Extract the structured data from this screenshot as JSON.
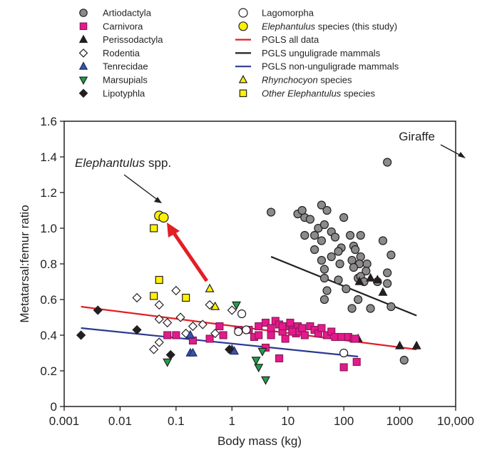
{
  "chart_data": {
    "type": "scatter",
    "xscale": "log",
    "xlim": [
      0.001,
      10000
    ],
    "ylim": [
      0,
      1.6
    ],
    "xlabel": "Body mass (kg)",
    "ylabel": "Metatarsal:femur ratio",
    "x_ticks": [
      0.001,
      0.01,
      0.1,
      1,
      10,
      100,
      1000,
      10000
    ],
    "x_tick_labels": [
      "0.001",
      "0.01",
      "0.1",
      "1",
      "10",
      "100",
      "1000",
      "10,000"
    ],
    "y_ticks": [
      0,
      0.2,
      0.4,
      0.6,
      0.8,
      1.0,
      1.2,
      1.4,
      1.6
    ],
    "y_tick_labels": [
      "0",
      "0.2",
      "0.4",
      "0.6",
      "0.8",
      "1.0",
      "1.2",
      "1.4",
      "1.6"
    ],
    "grid": false,
    "legend_placement": "top",
    "legend": [
      {
        "label": "Artiodactyla",
        "italic_prefix": "",
        "marker": "circle",
        "fill": "#8c8b8b",
        "stroke": "#231f20"
      },
      {
        "label": "Carnivora",
        "italic_prefix": "",
        "marker": "square",
        "fill": "#e6198c",
        "stroke": "#8b1a5a"
      },
      {
        "label": "Perissodactyla",
        "italic_prefix": "",
        "marker": "triangle-up",
        "fill": "#231f20",
        "stroke": "#231f20"
      },
      {
        "label": "Rodentia",
        "italic_prefix": "",
        "marker": "diamond",
        "fill": "#ffffff",
        "stroke": "#231f20"
      },
      {
        "label": "Tenrecidae",
        "italic_prefix": "",
        "marker": "triangle-up",
        "fill": "#3a54a4",
        "stroke": "#1d2a6b"
      },
      {
        "label": "Marsupials",
        "italic_prefix": "",
        "marker": "triangle-down",
        "fill": "#1fa04a",
        "stroke": "#231f20"
      },
      {
        "label": "Lipotyphla",
        "italic_prefix": "",
        "marker": "diamond",
        "fill": "#231f20",
        "stroke": "#231f20"
      },
      {
        "label": "Lagomorpha",
        "italic_prefix": "",
        "marker": "circle",
        "fill": "#ffffff",
        "stroke": "#231f20"
      },
      {
        "label": " species (this study)",
        "italic_prefix": "Elephantulus",
        "marker": "circle",
        "fill": "#fff200",
        "stroke": "#231f20"
      },
      {
        "label": "PGLS all data",
        "italic_prefix": "",
        "marker": "line",
        "fill": "#e31e24",
        "stroke": "#e31e24"
      },
      {
        "label": "PGLS unguligrade mammals",
        "italic_prefix": "",
        "marker": "line",
        "fill": "#231f20",
        "stroke": "#231f20"
      },
      {
        "label": "PGLS non-unguligrade mammals",
        "italic_prefix": "",
        "marker": "line",
        "fill": "#2b3990",
        "stroke": "#2b3990"
      },
      {
        "label": " species",
        "italic_prefix": "Rhynchocyon",
        "marker": "triangle-up",
        "fill": "#fff200",
        "stroke": "#231f20"
      },
      {
        "label": " species",
        "italic_prefix": "Other Elephantulus",
        "marker": "square",
        "fill": "#fff200",
        "stroke": "#231f20"
      }
    ],
    "series": [
      {
        "name": "Artiodactyla",
        "points": [
          [
            5,
            1.09
          ],
          [
            15,
            1.08
          ],
          [
            20,
            1.06
          ],
          [
            40,
            1.13
          ],
          [
            18,
            1.1
          ],
          [
            25,
            1.05
          ],
          [
            50,
            1.1
          ],
          [
            30,
            0.96
          ],
          [
            20,
            0.96
          ],
          [
            35,
            1.0
          ],
          [
            45,
            1.02
          ],
          [
            60,
            0.98
          ],
          [
            100,
            1.06
          ],
          [
            40,
            0.93
          ],
          [
            70,
            0.95
          ],
          [
            130,
            0.96
          ],
          [
            200,
            0.96
          ],
          [
            500,
            0.93
          ],
          [
            30,
            0.88
          ],
          [
            60,
            0.84
          ],
          [
            90,
            0.89
          ],
          [
            150,
            0.9
          ],
          [
            40,
            0.82
          ],
          [
            80,
            0.87
          ],
          [
            140,
            0.82
          ],
          [
            160,
            0.88
          ],
          [
            200,
            0.84
          ],
          [
            45,
            0.77
          ],
          [
            85,
            0.8
          ],
          [
            190,
            0.8
          ],
          [
            260,
            0.8
          ],
          [
            700,
            0.85
          ],
          [
            45,
            0.72
          ],
          [
            80,
            0.71
          ],
          [
            150,
            0.78
          ],
          [
            250,
            0.76
          ],
          [
            600,
            0.75
          ],
          [
            50,
            0.65
          ],
          [
            110,
            0.66
          ],
          [
            180,
            0.72
          ],
          [
            200,
            0.73
          ],
          [
            230,
            0.7
          ],
          [
            400,
            0.7
          ],
          [
            45,
            0.6
          ],
          [
            140,
            0.55
          ],
          [
            300,
            0.55
          ],
          [
            700,
            0.56
          ],
          [
            600,
            0.69
          ],
          [
            180,
            0.6
          ],
          [
            1200,
            0.26
          ],
          [
            600,
            1.37
          ]
        ]
      },
      {
        "name": "Perissodactyla",
        "points": [
          [
            190,
            0.7
          ],
          [
            300,
            0.72
          ],
          [
            400,
            0.71
          ],
          [
            500,
            0.64
          ],
          [
            1000,
            0.34
          ],
          [
            2000,
            0.34
          ],
          [
            180,
            0.38
          ]
        ]
      },
      {
        "name": "Carnivora",
        "points": [
          [
            0.07,
            0.4
          ],
          [
            0.1,
            0.4
          ],
          [
            0.2,
            0.37
          ],
          [
            0.4,
            0.38
          ],
          [
            0.6,
            0.45
          ],
          [
            0.7,
            0.4
          ],
          [
            1.3,
            0.43
          ],
          [
            2,
            0.43
          ],
          [
            3,
            0.45
          ],
          [
            4,
            0.47
          ],
          [
            5,
            0.44
          ],
          [
            6,
            0.48
          ],
          [
            7,
            0.46
          ],
          [
            8,
            0.42
          ],
          [
            9,
            0.38
          ],
          [
            10,
            0.45
          ],
          [
            11,
            0.47
          ],
          [
            12,
            0.43
          ],
          [
            14,
            0.41
          ],
          [
            15,
            0.45
          ],
          [
            16,
            0.42
          ],
          [
            18,
            0.44
          ],
          [
            20,
            0.4
          ],
          [
            25,
            0.45
          ],
          [
            30,
            0.43
          ],
          [
            35,
            0.41
          ],
          [
            40,
            0.44
          ],
          [
            50,
            0.4
          ],
          [
            60,
            0.42
          ],
          [
            70,
            0.39
          ],
          [
            90,
            0.39
          ],
          [
            120,
            0.39
          ],
          [
            150,
            0.38
          ],
          [
            2.5,
            0.39
          ],
          [
            4,
            0.33
          ],
          [
            7,
            0.27
          ],
          [
            5,
            0.4
          ],
          [
            12,
            0.42
          ],
          [
            100,
            0.22
          ],
          [
            170,
            0.25
          ],
          [
            160,
            0.38
          ],
          [
            8,
            0.45
          ],
          [
            3,
            0.4
          ]
        ]
      },
      {
        "name": "Rodentia",
        "points": [
          [
            0.02,
            0.61
          ],
          [
            0.05,
            0.49
          ],
          [
            0.05,
            0.57
          ],
          [
            0.1,
            0.65
          ],
          [
            0.07,
            0.47
          ],
          [
            0.12,
            0.5
          ],
          [
            0.04,
            0.32
          ],
          [
            0.05,
            0.36
          ],
          [
            0.15,
            0.41
          ],
          [
            0.2,
            0.45
          ],
          [
            0.4,
            0.57
          ],
          [
            0.5,
            0.41
          ],
          [
            1.0,
            0.54
          ],
          [
            0.3,
            0.46
          ]
        ]
      },
      {
        "name": "Tenrecidae",
        "points": [
          [
            0.18,
            0.3
          ],
          [
            0.2,
            0.3
          ],
          [
            0.18,
            0.4
          ],
          [
            1.0,
            0.32
          ],
          [
            1.1,
            0.31
          ]
        ]
      },
      {
        "name": "Marsupials",
        "points": [
          [
            1.2,
            0.57
          ],
          [
            2.7,
            0.26
          ],
          [
            3,
            0.22
          ],
          [
            3.5,
            0.31
          ],
          [
            4,
            0.15
          ],
          [
            0.07,
            0.25
          ]
        ]
      },
      {
        "name": "Lipotyphla",
        "points": [
          [
            0.002,
            0.4
          ],
          [
            0.004,
            0.54
          ],
          [
            0.02,
            0.43
          ],
          [
            0.08,
            0.29
          ],
          [
            0.9,
            0.32
          ]
        ]
      },
      {
        "name": "Lagomorpha",
        "points": [
          [
            1.5,
            0.52
          ],
          [
            1.8,
            0.43
          ],
          [
            1.3,
            0.42
          ],
          [
            100,
            0.3
          ]
        ]
      },
      {
        "name": "Elephantulus species (this study)",
        "points": [
          [
            0.05,
            1.07
          ],
          [
            0.06,
            1.06
          ]
        ]
      },
      {
        "name": "Rhynchocyon species",
        "points": [
          [
            0.4,
            0.66
          ],
          [
            0.5,
            0.56
          ]
        ]
      },
      {
        "name": "Other Elephantulus species",
        "points": [
          [
            0.04,
            1.0
          ],
          [
            0.05,
            0.71
          ],
          [
            0.15,
            0.61
          ],
          [
            0.04,
            0.62
          ]
        ]
      }
    ],
    "lines": [
      {
        "name": "PGLS all data",
        "from": [
          0.002,
          0.56
        ],
        "to": [
          2000,
          0.32
        ]
      },
      {
        "name": "PGLS unguligrade mammals",
        "from": [
          5,
          0.84
        ],
        "to": [
          2000,
          0.51
        ]
      },
      {
        "name": "PGLS non-unguligrade mammals",
        "from": [
          0.002,
          0.44
        ],
        "to": [
          180,
          0.28
        ]
      }
    ],
    "annotations": [
      {
        "text": "Giraffe",
        "italic_prefix": ""
      },
      {
        "text": " spp.",
        "italic_prefix": "Elephantulus"
      }
    ],
    "arrow_color": "#e31e24"
  }
}
